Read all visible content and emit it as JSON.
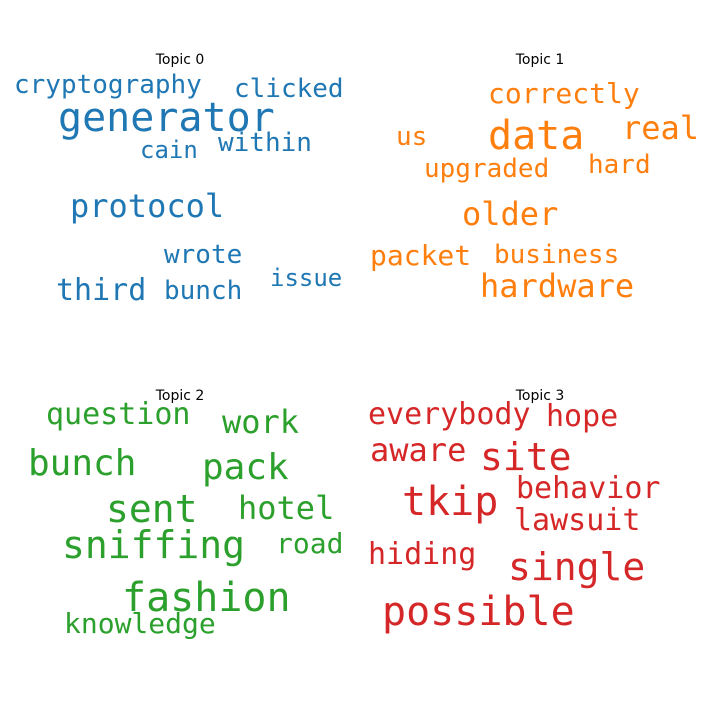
{
  "chart_data": {
    "type": "wordcloud",
    "panels": [
      {
        "title": "Topic 0",
        "color": "#1f77b4",
        "words": [
          {
            "text": "generator",
            "weight": 1.0
          },
          {
            "text": "protocol",
            "weight": 0.8
          },
          {
            "text": "third",
            "weight": 0.72
          },
          {
            "text": "cryptography",
            "weight": 0.66
          },
          {
            "text": "clicked",
            "weight": 0.66
          },
          {
            "text": "within",
            "weight": 0.66
          },
          {
            "text": "cain",
            "weight": 0.64
          },
          {
            "text": "wrote",
            "weight": 0.64
          },
          {
            "text": "bunch",
            "weight": 0.64
          },
          {
            "text": "issue",
            "weight": 0.62
          }
        ]
      },
      {
        "title": "Topic 1",
        "color": "#ff7f0e",
        "words": [
          {
            "text": "data",
            "weight": 1.0
          },
          {
            "text": "hardware",
            "weight": 0.88
          },
          {
            "text": "older",
            "weight": 0.84
          },
          {
            "text": "real",
            "weight": 0.84
          },
          {
            "text": "correctly",
            "weight": 0.74
          },
          {
            "text": "packet",
            "weight": 0.74
          },
          {
            "text": "upgraded",
            "weight": 0.72
          },
          {
            "text": "business",
            "weight": 0.7
          },
          {
            "text": "hard",
            "weight": 0.7
          },
          {
            "text": "us",
            "weight": 0.66
          }
        ]
      },
      {
        "title": "Topic 2",
        "color": "#2ca02c",
        "words": [
          {
            "text": "fashion",
            "weight": 1.0
          },
          {
            "text": "sniffing",
            "weight": 1.0
          },
          {
            "text": "sent",
            "weight": 0.96
          },
          {
            "text": "bunch",
            "weight": 0.96
          },
          {
            "text": "pack",
            "weight": 0.96
          },
          {
            "text": "question",
            "weight": 0.84
          },
          {
            "text": "work",
            "weight": 0.84
          },
          {
            "text": "hotel",
            "weight": 0.84
          },
          {
            "text": "road",
            "weight": 0.74
          },
          {
            "text": "knowledge",
            "weight": 0.74
          }
        ]
      },
      {
        "title": "Topic 3",
        "color": "#d62728",
        "words": [
          {
            "text": "possible",
            "weight": 1.0
          },
          {
            "text": "tkip",
            "weight": 1.0
          },
          {
            "text": "single",
            "weight": 1.0
          },
          {
            "text": "site",
            "weight": 0.96
          },
          {
            "text": "everybody",
            "weight": 0.8
          },
          {
            "text": "hope",
            "weight": 0.8
          },
          {
            "text": "aware",
            "weight": 0.8
          },
          {
            "text": "behavior",
            "weight": 0.8
          },
          {
            "text": "lawsuit",
            "weight": 0.8
          },
          {
            "text": "hiding",
            "weight": 0.8
          }
        ]
      }
    ]
  }
}
